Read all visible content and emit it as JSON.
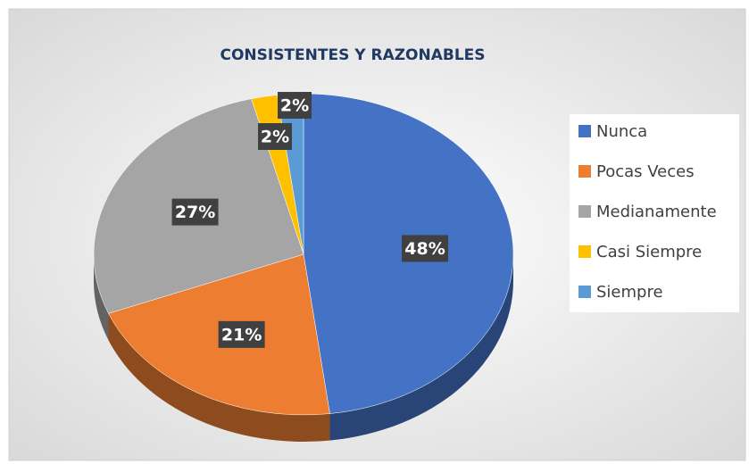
{
  "chart_data": {
    "type": "pie",
    "title": "CONSISTENTES Y RAZONABLES",
    "categories": [
      "Nunca",
      "Pocas Veces",
      "Medianamente",
      "Casi Siempre",
      "Siempre"
    ],
    "values": [
      48,
      21,
      27,
      2,
      2
    ],
    "value_labels": [
      "48%",
      "21%",
      "27%",
      "2%",
      "2%"
    ],
    "colors": [
      "#4472c4",
      "#ed7d31",
      "#a5a5a5",
      "#ffc000",
      "#5b9bd5"
    ],
    "legend": "right"
  }
}
